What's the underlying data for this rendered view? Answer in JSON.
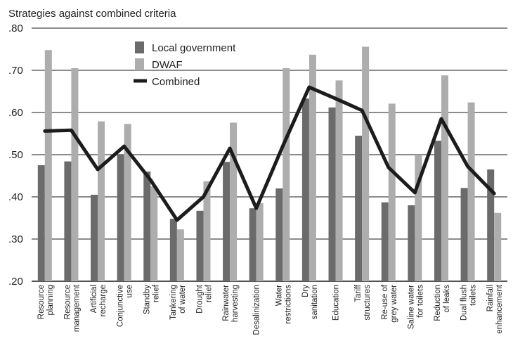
{
  "chart_data": {
    "type": "bar",
    "title": "Strategies against combined criteria",
    "xlabel": "",
    "ylabel": "",
    "ylim": [
      0.2,
      0.8
    ],
    "yticks": [
      ".80",
      ".70",
      ".60",
      ".50",
      ".40",
      ".30",
      ".20"
    ],
    "ytick_values": [
      0.8,
      0.7,
      0.6,
      0.5,
      0.4,
      0.3,
      0.2
    ],
    "grid": "horizontal",
    "legend_position": "top-center",
    "categories": [
      [
        "Resource",
        "planning"
      ],
      [
        "Resource",
        "management"
      ],
      [
        "Artificial",
        "recharge"
      ],
      [
        "Conjunctive",
        "use"
      ],
      [
        "Standby",
        "relief"
      ],
      [
        "Tankering",
        "of water"
      ],
      [
        "Drought",
        "relief"
      ],
      [
        "Rainwater",
        "harvesting"
      ],
      [
        "Desalinization"
      ],
      [
        "Water",
        "restrictions"
      ],
      [
        "Dry",
        "sanitation"
      ],
      [
        "Education"
      ],
      [
        "Tariff",
        "structures"
      ],
      [
        "Re-use of",
        "grey water"
      ],
      [
        "Saline water",
        "for toilets"
      ],
      [
        "Reduction",
        "of leaks"
      ],
      [
        "Dual flush",
        "toilets"
      ],
      [
        "Rainfall",
        "enhancement"
      ]
    ],
    "series": [
      {
        "name": "Local government",
        "kind": "bar",
        "color": "#6b6b6b",
        "values": [
          0.475,
          0.484,
          0.405,
          0.5,
          0.46,
          0.348,
          0.367,
          0.483,
          0.373,
          0.42,
          0.633,
          0.612,
          0.545,
          0.387,
          0.38,
          0.533,
          0.421,
          0.465
        ]
      },
      {
        "name": "DWAF",
        "kind": "bar",
        "color": "#adadad",
        "values": [
          0.748,
          0.705,
          0.579,
          0.573,
          0.425,
          0.323,
          0.437,
          0.576,
          0.385,
          0.705,
          0.737,
          0.676,
          0.756,
          0.621,
          0.5,
          0.688,
          0.624,
          0.362
        ]
      },
      {
        "name": "Combined",
        "kind": "line",
        "color": "#1c1c1c",
        "values": [
          0.556,
          0.558,
          0.465,
          0.52,
          0.44,
          0.345,
          0.4,
          0.515,
          0.373,
          0.52,
          0.66,
          0.633,
          0.605,
          0.47,
          0.41,
          0.585,
          0.472,
          0.408
        ]
      }
    ]
  }
}
